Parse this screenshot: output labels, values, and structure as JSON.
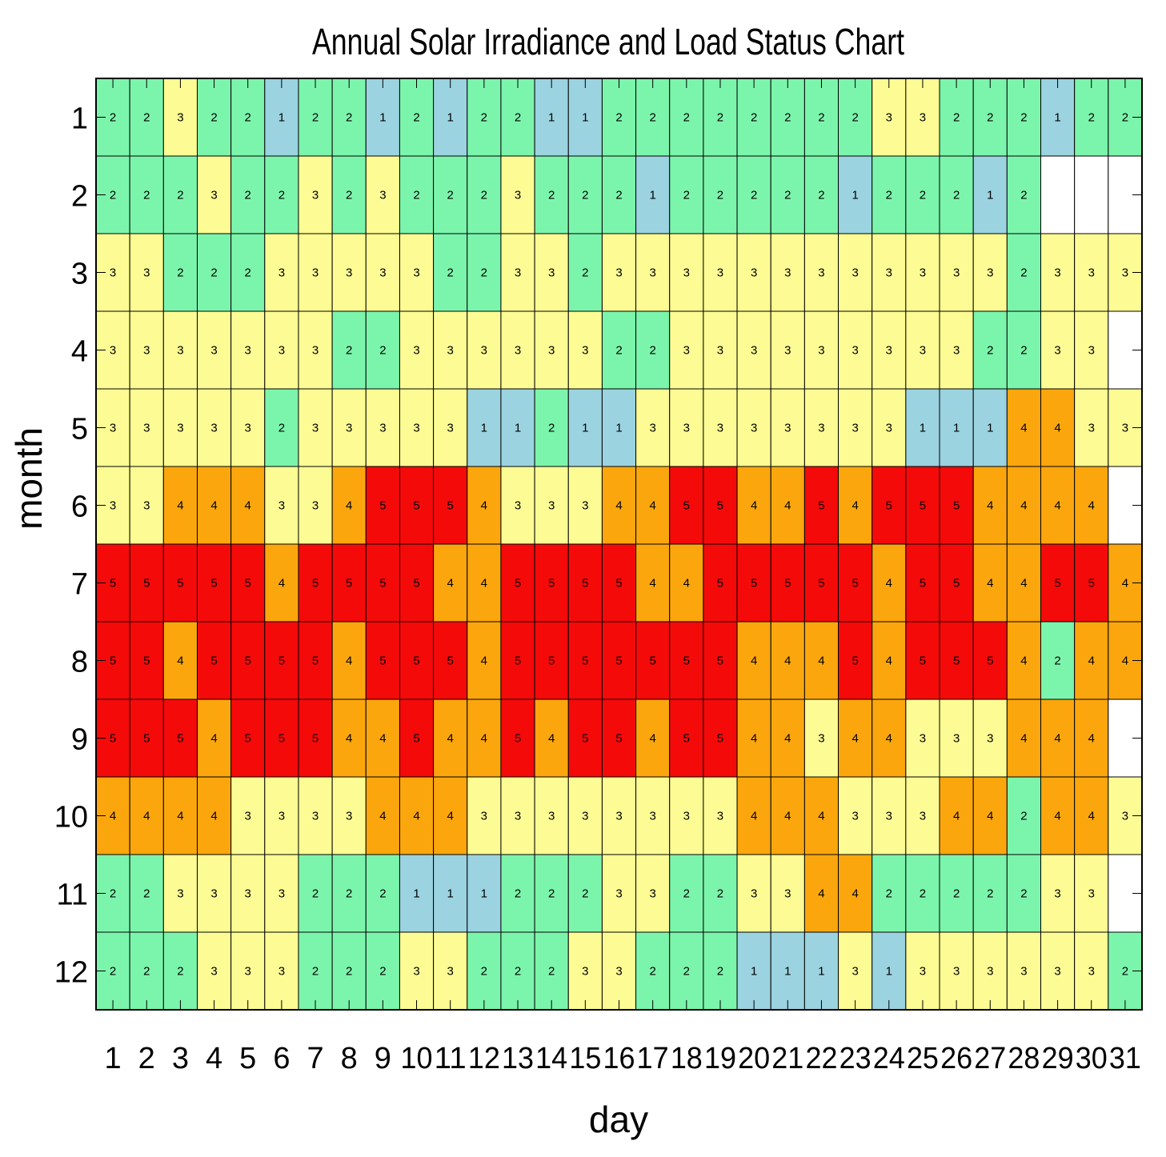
{
  "chart_data": {
    "type": "heatmap",
    "title": "Annual Solar Irradiance and Load Status Chart",
    "xlabel": "day",
    "ylabel": "month",
    "x_categories": [
      "1",
      "2",
      "3",
      "4",
      "5",
      "6",
      "7",
      "8",
      "9",
      "10",
      "11",
      "12",
      "13",
      "14",
      "15",
      "16",
      "17",
      "18",
      "19",
      "20",
      "21",
      "22",
      "23",
      "24",
      "25",
      "26",
      "27",
      "28",
      "29",
      "30",
      "31"
    ],
    "y_categories": [
      "1",
      "2",
      "3",
      "4",
      "5",
      "6",
      "7",
      "8",
      "9",
      "10",
      "11",
      "12"
    ],
    "colors": {
      "1": "#9bd3e0",
      "2": "#7cf5ac",
      "3": "#fdfc94",
      "4": "#fba60d",
      "5": "#f50a0a"
    },
    "values": [
      [
        2,
        2,
        3,
        2,
        2,
        1,
        2,
        2,
        1,
        2,
        1,
        2,
        2,
        1,
        1,
        2,
        2,
        2,
        2,
        2,
        2,
        2,
        2,
        3,
        3,
        2,
        2,
        2,
        1,
        2,
        2
      ],
      [
        2,
        2,
        2,
        3,
        2,
        2,
        3,
        2,
        3,
        2,
        2,
        2,
        3,
        2,
        2,
        2,
        1,
        2,
        2,
        2,
        2,
        2,
        1,
        2,
        2,
        2,
        1,
        2,
        null,
        null,
        null
      ],
      [
        3,
        3,
        2,
        2,
        2,
        3,
        3,
        3,
        3,
        3,
        2,
        2,
        3,
        3,
        2,
        3,
        3,
        3,
        3,
        3,
        3,
        3,
        3,
        3,
        3,
        3,
        3,
        2,
        3,
        3,
        3
      ],
      [
        3,
        3,
        3,
        3,
        3,
        3,
        3,
        2,
        2,
        3,
        3,
        3,
        3,
        3,
        3,
        2,
        2,
        3,
        3,
        3,
        3,
        3,
        3,
        3,
        3,
        3,
        2,
        2,
        3,
        3,
        null
      ],
      [
        3,
        3,
        3,
        3,
        3,
        2,
        3,
        3,
        3,
        3,
        3,
        1,
        1,
        2,
        1,
        1,
        3,
        3,
        3,
        3,
        3,
        3,
        3,
        3,
        1,
        1,
        1,
        4,
        4,
        3,
        3
      ],
      [
        3,
        3,
        4,
        4,
        4,
        3,
        3,
        4,
        5,
        5,
        5,
        4,
        3,
        3,
        3,
        4,
        4,
        5,
        5,
        4,
        4,
        5,
        4,
        5,
        5,
        5,
        4,
        4,
        4,
        4,
        null
      ],
      [
        5,
        5,
        5,
        5,
        5,
        4,
        5,
        5,
        5,
        5,
        4,
        4,
        5,
        5,
        5,
        5,
        4,
        4,
        5,
        5,
        5,
        5,
        5,
        4,
        5,
        5,
        4,
        4,
        5,
        5,
        4
      ],
      [
        5,
        5,
        4,
        5,
        5,
        5,
        5,
        4,
        5,
        5,
        5,
        4,
        5,
        5,
        5,
        5,
        5,
        5,
        5,
        4,
        4,
        4,
        5,
        4,
        5,
        5,
        5,
        4,
        2,
        4,
        4
      ],
      [
        5,
        5,
        5,
        4,
        5,
        5,
        5,
        4,
        4,
        5,
        4,
        4,
        5,
        4,
        5,
        5,
        4,
        5,
        5,
        4,
        4,
        3,
        4,
        4,
        3,
        3,
        3,
        4,
        4,
        4,
        null
      ],
      [
        4,
        4,
        4,
        4,
        3,
        3,
        3,
        3,
        4,
        4,
        4,
        3,
        3,
        3,
        3,
        3,
        3,
        3,
        3,
        4,
        4,
        4,
        3,
        3,
        3,
        4,
        4,
        2,
        4,
        4,
        3
      ],
      [
        2,
        2,
        3,
        3,
        3,
        3,
        2,
        2,
        2,
        1,
        1,
        1,
        2,
        2,
        2,
        3,
        3,
        2,
        2,
        3,
        3,
        4,
        4,
        2,
        2,
        2,
        2,
        2,
        3,
        3,
        null
      ],
      [
        2,
        2,
        2,
        3,
        3,
        3,
        2,
        2,
        2,
        3,
        3,
        2,
        2,
        2,
        3,
        3,
        2,
        2,
        2,
        1,
        1,
        1,
        3,
        1,
        3,
        3,
        3,
        3,
        3,
        3,
        2
      ]
    ]
  }
}
